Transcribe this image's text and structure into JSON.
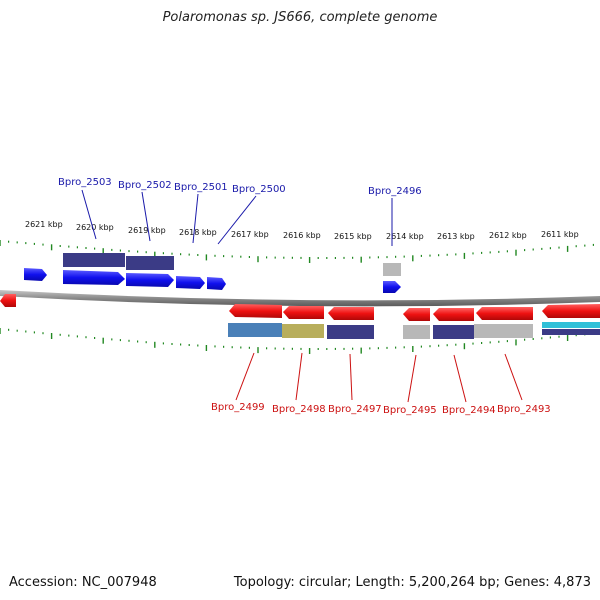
{
  "title": "Polaromonas sp. JS666, complete genome",
  "footer": {
    "accession": "Accession: NC_007948",
    "topology": "Topology: circular; Length: 5,200,264 bp; Genes: 4,873"
  },
  "colors": {
    "forward_gene": "#1010ee",
    "reverse_gene": "#ee1111",
    "forward_label": "#1a1aaa",
    "reverse_label": "#cc1111",
    "tick": "#228822",
    "backbone": "#8a8a8a",
    "annotation_navy": "#3b3b86",
    "annotation_steel": "#4a80b8",
    "annotation_olive": "#b8ae5c",
    "annotation_grey": "#b8b8b8",
    "annotation_teal": "#30c0d8"
  },
  "axis": {
    "unit": "kbp",
    "top_tick_labels": [
      "2621 kbp",
      "2620 kbp",
      "2619 kbp",
      "2618 kbp",
      "2617 kbp",
      "2616 kbp",
      "2615 kbp",
      "2614 kbp",
      "2613 kbp",
      "2612 kbp",
      "2611 kbp"
    ]
  },
  "forward_gene_labels": [
    "Bpro_2503",
    "Bpro_2502",
    "Bpro_2501",
    "Bpro_2500",
    "Bpro_2496"
  ],
  "reverse_gene_labels": [
    "Bpro_2499",
    "Bpro_2498",
    "Bpro_2497",
    "Bpro_2495",
    "Bpro_2494",
    "Bpro_2493"
  ]
}
